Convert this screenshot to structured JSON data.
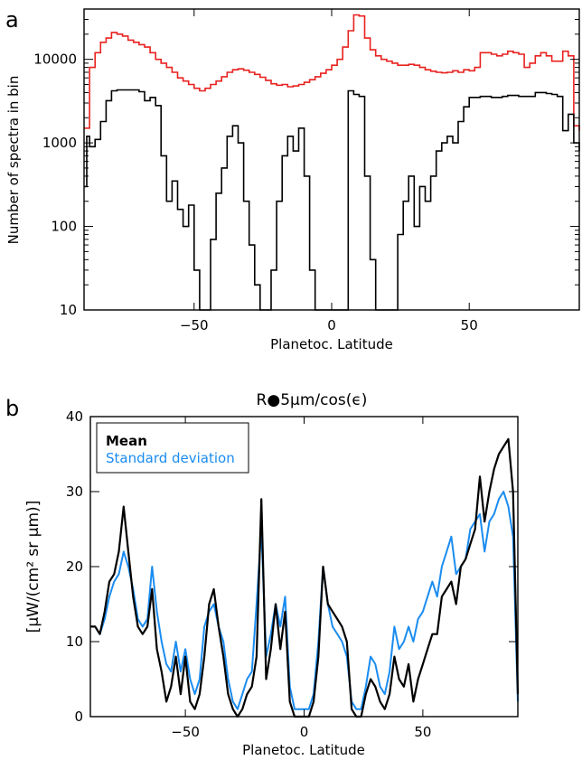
{
  "chart_data": [
    {
      "panel_label": "a",
      "type": "line",
      "xlabel": "Planetoc. Latitude",
      "ylabel": "Number of spectra in bin",
      "xlim": [
        -90,
        90
      ],
      "ylim": [
        10,
        40000
      ],
      "yscale": "log",
      "x_ticks": [
        -50,
        0,
        50
      ],
      "y_ticks": [
        10,
        100,
        1000,
        10000
      ],
      "y_tick_labels": [
        "10",
        "100",
        "1000",
        "10000"
      ],
      "series": [
        {
          "color": "#e8211f",
          "style": "step",
          "x": [
            -90,
            -88,
            -86,
            -84,
            -82,
            -80,
            -78,
            -76,
            -74,
            -72,
            -70,
            -68,
            -66,
            -64,
            -62,
            -60,
            -58,
            -56,
            -54,
            -52,
            -50,
            -48,
            -46,
            -44,
            -42,
            -40,
            -38,
            -36,
            -34,
            -32,
            -30,
            -28,
            -26,
            -24,
            -22,
            -20,
            -18,
            -16,
            -14,
            -12,
            -10,
            -8,
            -6,
            -4,
            -2,
            0,
            2,
            4,
            6,
            8,
            10,
            12,
            14,
            16,
            18,
            20,
            22,
            24,
            26,
            28,
            30,
            32,
            34,
            36,
            38,
            40,
            42,
            44,
            46,
            48,
            50,
            52,
            54,
            56,
            58,
            60,
            62,
            64,
            66,
            68,
            70,
            72,
            74,
            76,
            78,
            80,
            82,
            84,
            86,
            88,
            90
          ],
          "y": [
            1500,
            8000,
            12000,
            16000,
            18000,
            21000,
            20000,
            19000,
            17000,
            16000,
            15000,
            14000,
            12000,
            10000,
            9000,
            8000,
            7000,
            6000,
            5500,
            5000,
            4500,
            4200,
            4500,
            5000,
            5500,
            6200,
            7000,
            7500,
            7700,
            7400,
            7000,
            6600,
            6100,
            5600,
            5100,
            4900,
            5000,
            4700,
            4800,
            5000,
            5300,
            5700,
            6200,
            6800,
            7500,
            8500,
            10000,
            14000,
            22000,
            34000,
            33000,
            18000,
            13000,
            11000,
            10000,
            9500,
            9000,
            8500,
            8500,
            8700,
            8500,
            8000,
            7500,
            7200,
            7000,
            6900,
            7000,
            7300,
            7000,
            7500,
            7300,
            8000,
            12000,
            12000,
            11500,
            11000,
            11500,
            12500,
            12000,
            11500,
            8000,
            9000,
            11000,
            12000,
            11000,
            9500,
            9500,
            12500,
            11000,
            1600,
            1400
          ]
        },
        {
          "color": "#000000",
          "style": "step",
          "x": [
            -90,
            -89,
            -88,
            -86,
            -84,
            -82,
            -80,
            -78,
            -76,
            -74,
            -72,
            -70,
            -68,
            -66,
            -64,
            -62,
            -60,
            -58,
            -56,
            -54,
            -52,
            -50,
            -48,
            -46,
            -44,
            -42,
            -40,
            -38,
            -36,
            -34,
            -32,
            -30,
            -28,
            -26,
            -24,
            -22,
            -20,
            -18,
            -16,
            -14,
            -12,
            -10,
            -8,
            -6,
            -4,
            -2,
            0,
            2,
            4,
            6,
            8,
            10,
            12,
            14,
            16,
            18,
            20,
            22,
            24,
            26,
            28,
            30,
            32,
            34,
            36,
            38,
            40,
            42,
            44,
            46,
            48,
            50,
            52,
            54,
            56,
            58,
            60,
            62,
            64,
            66,
            68,
            70,
            72,
            74,
            76,
            78,
            80,
            82,
            84,
            86,
            88,
            90
          ],
          "y": [
            300,
            1200,
            900,
            1100,
            1800,
            3200,
            4200,
            4300,
            4300,
            4300,
            4300,
            4100,
            3200,
            3500,
            2800,
            700,
            200,
            350,
            160,
            100,
            180,
            30,
            8,
            8,
            70,
            250,
            500,
            1200,
            1600,
            1000,
            200,
            60,
            20,
            8,
            8,
            30,
            200,
            700,
            1200,
            800,
            1500,
            400,
            30,
            8,
            8,
            8,
            8,
            8,
            8,
            4200,
            3800,
            3600,
            400,
            40,
            8,
            8,
            8,
            8,
            80,
            200,
            400,
            100,
            300,
            200,
            400,
            800,
            1000,
            1200,
            1000,
            1800,
            2700,
            3500,
            3500,
            3600,
            3600,
            3500,
            3500,
            3600,
            3700,
            3700,
            3600,
            3600,
            3600,
            4000,
            4000,
            3900,
            3800,
            3600,
            1400,
            2200,
            1000,
            800
          ]
        }
      ]
    },
    {
      "panel_label": "b",
      "type": "line",
      "title": "R●5μm/cos(ϵ)",
      "xlabel": "Planetoc. Latitude",
      "ylabel": "[μW/(cm² sr μm)]",
      "xlim": [
        -90,
        90
      ],
      "ylim": [
        0,
        40
      ],
      "x_ticks": [
        -50,
        0,
        50
      ],
      "y_ticks": [
        0,
        10,
        20,
        30,
        40
      ],
      "legend": {
        "placement": "top-left",
        "boxed": true
      },
      "series": [
        {
          "name": "Mean",
          "color": "#000000",
          "x": [
            -90,
            -88,
            -86,
            -84,
            -82,
            -80,
            -78,
            -76,
            -74,
            -72,
            -70,
            -68,
            -66,
            -64,
            -62,
            -60,
            -58,
            -56,
            -54,
            -52,
            -50,
            -48,
            -46,
            -44,
            -42,
            -40,
            -38,
            -36,
            -34,
            -32,
            -30,
            -28,
            -26,
            -24,
            -22,
            -20,
            -18,
            -16,
            -14,
            -12,
            -10,
            -8,
            -6,
            -4,
            -2,
            0,
            2,
            4,
            6,
            8,
            10,
            12,
            14,
            16,
            18,
            20,
            22,
            24,
            26,
            28,
            30,
            32,
            34,
            36,
            38,
            40,
            42,
            44,
            46,
            48,
            50,
            52,
            54,
            56,
            58,
            60,
            62,
            64,
            66,
            68,
            70,
            72,
            74,
            76,
            78,
            80,
            82,
            84,
            86,
            88,
            90
          ],
          "y": [
            12,
            12,
            11,
            14,
            18,
            19,
            22,
            28,
            22,
            16,
            12,
            11,
            12,
            17,
            9,
            6,
            2,
            4,
            8,
            3,
            8,
            2,
            1,
            3,
            8,
            15,
            17,
            12,
            8,
            3,
            1,
            0,
            1,
            3,
            4,
            8,
            29,
            5,
            9,
            15,
            9,
            14,
            2,
            0,
            0,
            0,
            0,
            2,
            8,
            20,
            15,
            14,
            13,
            12,
            10,
            1,
            0,
            0,
            3,
            5,
            4,
            2,
            1,
            3,
            8,
            5,
            4,
            7,
            2,
            5,
            7,
            9,
            11,
            11,
            16,
            17,
            18,
            15,
            20,
            21,
            23,
            25,
            32,
            26,
            30,
            33,
            35,
            36,
            37,
            30,
            3
          ]
        },
        {
          "name": "Standard deviation",
          "color": "#1a8cf0",
          "x": [
            -90,
            -88,
            -86,
            -84,
            -82,
            -80,
            -78,
            -76,
            -74,
            -72,
            -70,
            -68,
            -66,
            -64,
            -62,
            -60,
            -58,
            -56,
            -54,
            -52,
            -50,
            -48,
            -46,
            -44,
            -42,
            -40,
            -38,
            -36,
            -34,
            -32,
            -30,
            -28,
            -26,
            -24,
            -22,
            -20,
            -18,
            -16,
            -14,
            -12,
            -10,
            -8,
            -6,
            -4,
            -2,
            0,
            2,
            4,
            6,
            8,
            10,
            12,
            14,
            16,
            18,
            20,
            22,
            24,
            26,
            28,
            30,
            32,
            34,
            36,
            38,
            40,
            42,
            44,
            46,
            48,
            50,
            52,
            54,
            56,
            58,
            60,
            62,
            64,
            66,
            68,
            70,
            72,
            74,
            76,
            78,
            80,
            82,
            84,
            86,
            88,
            90
          ],
          "y": [
            12,
            12,
            11,
            13,
            16,
            18,
            19,
            22,
            20,
            17,
            13,
            12,
            13,
            20,
            14,
            10,
            7,
            6,
            10,
            6,
            9,
            5,
            3,
            5,
            12,
            14,
            15,
            12,
            10,
            5,
            2,
            1,
            3,
            5,
            6,
            15,
            25,
            8,
            11,
            15,
            12,
            16,
            4,
            1,
            1,
            1,
            1,
            3,
            10,
            20,
            15,
            12,
            11,
            10,
            8,
            2,
            1,
            1,
            4,
            8,
            7,
            4,
            3,
            6,
            12,
            9,
            10,
            12,
            10,
            13,
            14,
            16,
            18,
            16,
            20,
            22,
            24,
            19,
            20,
            21,
            25,
            26,
            27,
            22,
            26,
            27,
            29,
            30,
            28,
            24,
            2
          ]
        }
      ]
    }
  ]
}
